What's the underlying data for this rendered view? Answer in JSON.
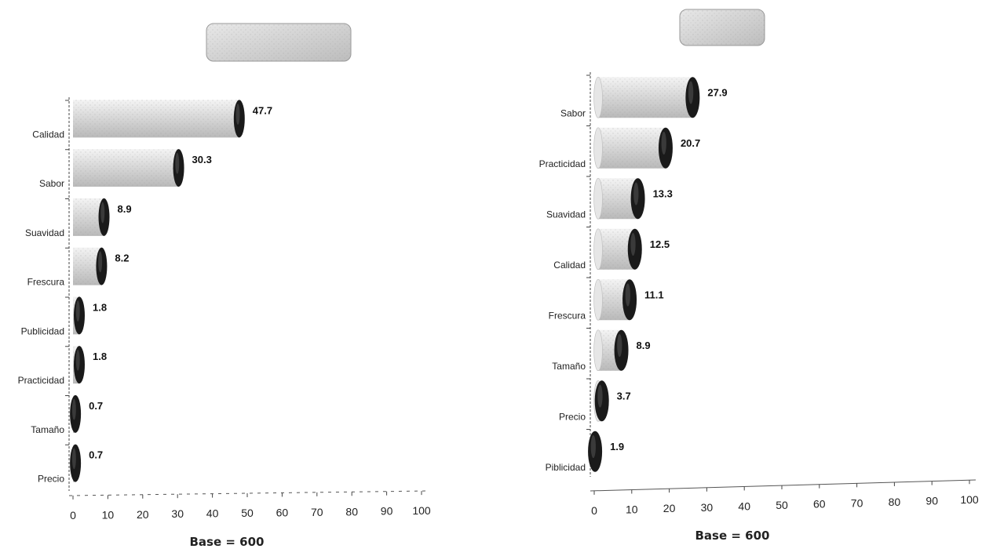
{
  "chart_data": [
    {
      "type": "bar",
      "orientation": "horizontal",
      "title": "",
      "categories": [
        "Calidad",
        "Sabor",
        "Suavidad",
        "Frescura",
        "Publicidad",
        "Practicidad",
        "Tamaño",
        "Precio"
      ],
      "values": [
        47.7,
        30.3,
        8.9,
        8.2,
        1.8,
        1.8,
        0.7,
        0.7
      ],
      "value_labels": [
        "47.7",
        "30.3",
        "8.9",
        "8.2",
        "1.8",
        "1.8",
        "0.7",
        "0.7"
      ],
      "xticks": [
        "0",
        "10",
        "20",
        "30",
        "40",
        "50",
        "60",
        "70",
        "80",
        "90",
        "100"
      ],
      "xlim": [
        0,
        100
      ],
      "footnote": "Base = 600",
      "colors": {
        "bar": "#cfcfcf",
        "cap": "#1a1a1a"
      }
    },
    {
      "type": "bar",
      "orientation": "horizontal",
      "title": "",
      "categories": [
        "Sabor",
        "Practicidad",
        "Suavidad",
        "Calidad",
        "Frescura",
        "Tamaño",
        "Precio",
        "Piblicidad"
      ],
      "values": [
        27.9,
        20.7,
        13.3,
        12.5,
        11.1,
        8.9,
        3.7,
        1.9
      ],
      "value_labels": [
        "27.9",
        "20.7",
        "13.3",
        "12.5",
        "11.1",
        "8.9",
        "3.7",
        "1.9"
      ],
      "xticks": [
        "0",
        "10",
        "20",
        "30",
        "40",
        "50",
        "60",
        "70",
        "80",
        "90",
        "100"
      ],
      "xlim": [
        0,
        100
      ],
      "footnote": "Base = 600",
      "colors": {
        "bar": "#cfcfcf",
        "cap": "#1a1a1a"
      }
    }
  ]
}
